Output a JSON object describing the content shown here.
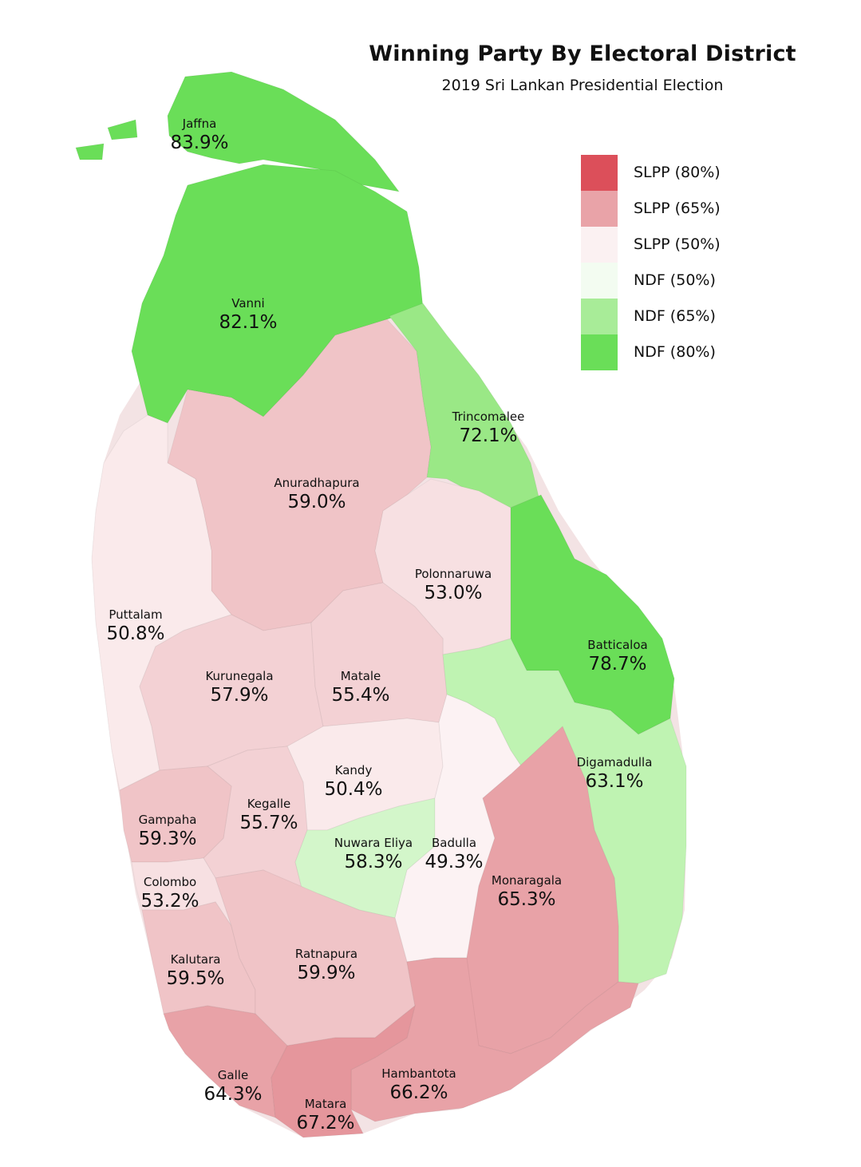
{
  "title": "Winning Party By Electoral District",
  "subtitle": "2019 Sri Lankan Presidential Election",
  "colors": {
    "slpp_80": "#dc4f5a",
    "slpp_65": "#e9a3a8",
    "slpp_50": "#fbf1f2",
    "ndf_50": "#f3fcf1",
    "ndf_65": "#a8ec98",
    "ndf_80": "#6ade58"
  },
  "legend": [
    {
      "label": "SLPP (80%)",
      "color": "#dc4f5a"
    },
    {
      "label": "SLPP (65%)",
      "color": "#e9a3a8"
    },
    {
      "label": "SLPP (50%)",
      "color": "#fbf1f2"
    },
    {
      "label": "NDF (50%)",
      "color": "#f3fcf1"
    },
    {
      "label": "NDF (65%)",
      "color": "#a8ec98"
    },
    {
      "label": "NDF (80%)",
      "color": "#6ade58"
    }
  ],
  "districts": [
    {
      "name": "Jaffna",
      "value": "83.9%",
      "party": "NDF",
      "share": 83.9
    },
    {
      "name": "Vanni",
      "value": "82.1%",
      "party": "NDF",
      "share": 82.1
    },
    {
      "name": "Trincomalee",
      "value": "72.1%",
      "party": "NDF",
      "share": 72.1
    },
    {
      "name": "Anuradhapura",
      "value": "59.0%",
      "party": "SLPP",
      "share": 59.0
    },
    {
      "name": "Polonnaruwa",
      "value": "53.0%",
      "party": "SLPP",
      "share": 53.0
    },
    {
      "name": "Puttalam",
      "value": "50.8%",
      "party": "SLPP",
      "share": 50.8
    },
    {
      "name": "Batticaloa",
      "value": "78.7%",
      "party": "NDF",
      "share": 78.7
    },
    {
      "name": "Kurunegala",
      "value": "57.9%",
      "party": "SLPP",
      "share": 57.9
    },
    {
      "name": "Matale",
      "value": "55.4%",
      "party": "SLPP",
      "share": 55.4
    },
    {
      "name": "Digamadulla",
      "value": "63.1%",
      "party": "NDF",
      "share": 63.1
    },
    {
      "name": "Kandy",
      "value": "50.4%",
      "party": "SLPP",
      "share": 50.4
    },
    {
      "name": "Kegalle",
      "value": "55.7%",
      "party": "SLPP",
      "share": 55.7
    },
    {
      "name": "Gampaha",
      "value": "59.3%",
      "party": "SLPP",
      "share": 59.3
    },
    {
      "name": "Nuwara Eliya",
      "value": "58.3%",
      "party": "NDF",
      "share": 58.3
    },
    {
      "name": "Badulla",
      "value": "49.3%",
      "party": "SLPP",
      "share": 49.3
    },
    {
      "name": "Colombo",
      "value": "53.2%",
      "party": "SLPP",
      "share": 53.2
    },
    {
      "name": "Monaragala",
      "value": "65.3%",
      "party": "SLPP",
      "share": 65.3
    },
    {
      "name": "Kalutara",
      "value": "59.5%",
      "party": "SLPP",
      "share": 59.5
    },
    {
      "name": "Ratnapura",
      "value": "59.9%",
      "party": "SLPP",
      "share": 59.9
    },
    {
      "name": "Galle",
      "value": "64.3%",
      "party": "SLPP",
      "share": 64.3
    },
    {
      "name": "Hambantota",
      "value": "66.2%",
      "party": "SLPP",
      "share": 66.2
    },
    {
      "name": "Matara",
      "value": "67.2%",
      "party": "SLPP",
      "share": 67.2
    }
  ]
}
